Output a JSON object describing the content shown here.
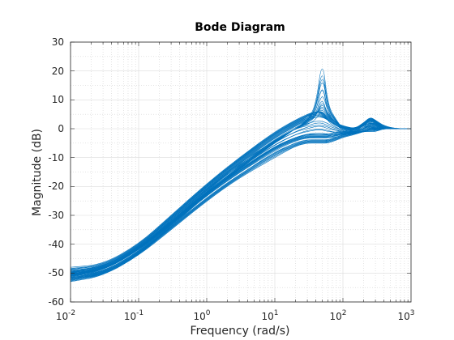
{
  "chart_data": {
    "type": "line",
    "title": "Bode Diagram",
    "xlabel": "Frequency  (rad/s)",
    "ylabel": "Magnitude (dB)",
    "xscale": "log",
    "xlim": [
      0.01,
      1000
    ],
    "ylim": [
      -60,
      30
    ],
    "x_ticks": [
      {
        "base": "10",
        "exp": "-2"
      },
      {
        "base": "10",
        "exp": "-1"
      },
      {
        "base": "10",
        "exp": "0"
      },
      {
        "base": "10",
        "exp": "1"
      },
      {
        "base": "10",
        "exp": "2"
      },
      {
        "base": "10",
        "exp": "3"
      }
    ],
    "y_ticks": [
      "30",
      "20",
      "10",
      "0",
      "-10",
      "-20",
      "-30",
      "-40",
      "-50",
      "-60"
    ],
    "grid": true,
    "line_color": "#0072bd",
    "series_description": "Family of ~60 magnitude responses (sampled systems); values below are estimated envelope traces",
    "x": [
      0.01,
      0.03,
      0.1,
      0.3,
      1,
      3,
      10,
      20,
      30,
      40,
      50,
      60,
      80,
      100,
      150,
      200,
      250,
      300,
      400,
      600,
      1000
    ],
    "series": [
      {
        "values": [
          -53,
          -51,
          -44,
          -34,
          -23,
          -14,
          -5,
          0,
          3,
          8,
          25,
          8,
          3,
          0,
          0,
          2,
          4,
          3,
          0,
          0,
          0
        ]
      },
      {
        "values": [
          -52,
          -50,
          -43,
          -33,
          -22,
          -13,
          -4,
          0,
          2,
          4,
          10,
          5,
          2,
          0,
          0,
          1,
          3,
          2,
          0,
          0,
          0
        ]
      },
      {
        "values": [
          -50,
          -48,
          -41,
          -31,
          -20,
          -11,
          -2,
          2,
          4,
          6,
          6,
          4,
          2,
          1,
          0,
          2,
          4,
          3,
          1,
          0,
          0
        ]
      },
      {
        "values": [
          -48,
          -47,
          -40,
          -30,
          -19,
          -10,
          -1,
          3,
          5,
          6,
          5,
          3,
          1,
          0,
          0,
          1,
          2,
          2,
          0,
          0,
          0
        ]
      },
      {
        "values": [
          -51,
          -49,
          -42,
          -32,
          -21,
          -12,
          -3,
          1,
          3,
          4,
          4,
          3,
          1,
          0,
          -1,
          1,
          2,
          1,
          0,
          0,
          0
        ]
      },
      {
        "values": [
          -50,
          -49,
          -42,
          -33,
          -23,
          -15,
          -7,
          -4,
          -3,
          -3,
          -3,
          -3,
          -3,
          -2,
          -2,
          -1,
          -1,
          -1,
          0,
          0,
          0
        ]
      },
      {
        "values": [
          -49,
          -48,
          -41,
          -32,
          -22,
          -14,
          -6,
          -3,
          -2,
          -2,
          -2,
          -2,
          -1,
          -1,
          -1,
          -1,
          0,
          0,
          0,
          0,
          0
        ]
      },
      {
        "values": [
          -52,
          -51,
          -44,
          -35,
          -25,
          -17,
          -10,
          -6,
          -5,
          -5,
          -5,
          -5,
          -4,
          -3,
          -2,
          -1,
          0,
          0,
          0,
          0,
          0
        ]
      },
      {
        "values": [
          -51,
          -50,
          -43,
          -34,
          -24,
          -16,
          -8,
          -5,
          -4,
          -4,
          -4,
          -4,
          -3,
          -2,
          -1,
          0,
          1,
          0,
          0,
          0,
          0
        ]
      },
      {
        "values": [
          -50,
          -48,
          -41,
          -31,
          -20,
          -12,
          -4,
          0,
          1,
          2,
          2,
          1,
          0,
          -1,
          -1,
          0,
          2,
          1,
          0,
          0,
          0
        ]
      }
    ]
  }
}
